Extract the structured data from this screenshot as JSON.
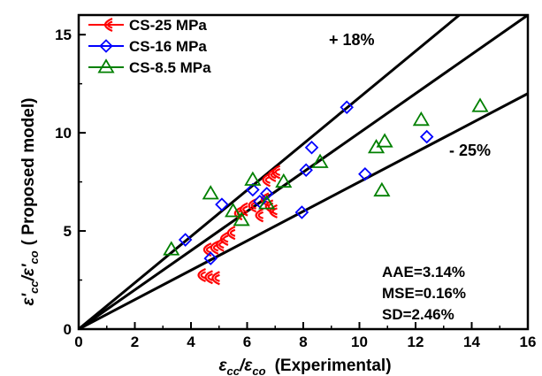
{
  "chart_data": {
    "type": "scatter",
    "xlabel_parts": [
      "ε",
      "cc",
      "/ε",
      "co",
      "(Experimental)"
    ],
    "ylabel_parts": [
      "ε'",
      "cc",
      "/ε'",
      "co",
      "( Proposed model)"
    ],
    "xlim": [
      0,
      16
    ],
    "ylim": [
      0,
      16
    ],
    "xticks": [
      "0",
      "2",
      "4",
      "6",
      "8",
      "10",
      "12",
      "14",
      "16"
    ],
    "yticks": [
      "0",
      "5",
      "10",
      "15"
    ],
    "grid": false,
    "legend_position": "top-left",
    "series": [
      {
        "name": "CS-25 MPa",
        "marker": "open-crescent",
        "color": "#ff0000",
        "points": [
          {
            "x": 4.3,
            "y": 2.75
          },
          {
            "x": 4.55,
            "y": 2.65
          },
          {
            "x": 4.8,
            "y": 2.6
          },
          {
            "x": 4.5,
            "y": 4.05
          },
          {
            "x": 4.75,
            "y": 4.15
          },
          {
            "x": 4.95,
            "y": 4.3
          },
          {
            "x": 5.1,
            "y": 4.6
          },
          {
            "x": 5.35,
            "y": 4.9
          },
          {
            "x": 5.6,
            "y": 5.9
          },
          {
            "x": 5.8,
            "y": 6.1
          },
          {
            "x": 6.1,
            "y": 6.3
          },
          {
            "x": 6.35,
            "y": 5.8
          },
          {
            "x": 6.55,
            "y": 6.6
          },
          {
            "x": 6.7,
            "y": 6.25
          },
          {
            "x": 6.85,
            "y": 6.0
          },
          {
            "x": 6.6,
            "y": 7.6
          },
          {
            "x": 6.8,
            "y": 7.85
          },
          {
            "x": 6.95,
            "y": 8.0
          }
        ]
      },
      {
        "name": "CS-16 MPa",
        "marker": "open-diamond",
        "color": "#0000ff",
        "points": [
          {
            "x": 3.8,
            "y": 4.55
          },
          {
            "x": 4.7,
            "y": 3.6
          },
          {
            "x": 5.1,
            "y": 6.35
          },
          {
            "x": 6.2,
            "y": 7.1
          },
          {
            "x": 6.45,
            "y": 6.5
          },
          {
            "x": 6.7,
            "y": 6.9
          },
          {
            "x": 7.95,
            "y": 5.95
          },
          {
            "x": 8.1,
            "y": 8.1
          },
          {
            "x": 8.3,
            "y": 9.25
          },
          {
            "x": 9.55,
            "y": 11.3
          },
          {
            "x": 10.2,
            "y": 7.9
          },
          {
            "x": 12.4,
            "y": 9.8
          }
        ]
      },
      {
        "name": "CS-8.5 MPa",
        "marker": "open-triangle",
        "color": "#008000",
        "points": [
          {
            "x": 3.3,
            "y": 4.05
          },
          {
            "x": 4.7,
            "y": 6.9
          },
          {
            "x": 5.5,
            "y": 6.0
          },
          {
            "x": 5.8,
            "y": 5.55
          },
          {
            "x": 6.2,
            "y": 7.6
          },
          {
            "x": 6.7,
            "y": 6.4
          },
          {
            "x": 7.3,
            "y": 7.5
          },
          {
            "x": 8.6,
            "y": 8.5
          },
          {
            "x": 10.6,
            "y": 9.25
          },
          {
            "x": 10.8,
            "y": 7.05
          },
          {
            "x": 10.9,
            "y": 9.55
          },
          {
            "x": 12.2,
            "y": 10.65
          },
          {
            "x": 14.3,
            "y": 11.35
          }
        ]
      }
    ],
    "lines": [
      {
        "slope": 1.18,
        "label": "+ 18%"
      },
      {
        "slope": 1.0,
        "label": ""
      },
      {
        "slope": 0.75,
        "label": "- 25%"
      }
    ],
    "stats": [
      "AAE=3.14%",
      "MSE=0.16%",
      "SD=2.46%"
    ]
  }
}
